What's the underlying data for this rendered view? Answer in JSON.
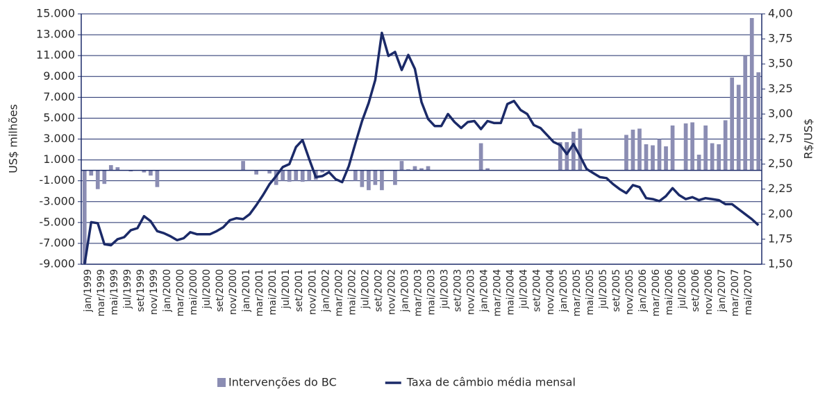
{
  "chart_data": {
    "type": "combo",
    "ylabel": "US$ milhões",
    "y2label": "R$/US$",
    "categories": [
      "jan/1999",
      null,
      "mar/1999",
      null,
      "mai/1999",
      null,
      "jul/1999",
      null,
      "set/1999",
      null,
      "nov/1999",
      null,
      "jan/2000",
      null,
      "mar/2000",
      null,
      "mai/2000",
      null,
      "jul/2000",
      null,
      "set/2000",
      null,
      "nov/2000",
      null,
      "jan/2001",
      null,
      "mar/2001",
      null,
      "mai/2001",
      null,
      "jul/2001",
      null,
      "set/2001",
      null,
      "nov/2001",
      null,
      "jan/2002",
      null,
      "mar/2002",
      null,
      "mai/2002",
      null,
      "jul/2002",
      null,
      "set/2002",
      null,
      "nov/2002",
      null,
      "jan/2003",
      null,
      "mar/2003",
      null,
      "mai/2003",
      null,
      "jul/2003",
      null,
      "set/2003",
      null,
      "nov/2003",
      null,
      "jan/2004",
      null,
      "mar/2004",
      null,
      "mai/2004",
      null,
      "jul/2004",
      null,
      "set/2004",
      null,
      "nov/2004",
      null,
      "jan/2005",
      null,
      "mar/2005",
      null,
      "mai/2005",
      null,
      "jul/2005",
      null,
      "set/2005",
      null,
      "nov/2005",
      null,
      "jan/2006",
      null,
      "mar/2006",
      null,
      "mai/2006",
      null,
      "jul/2006",
      null,
      "set/2006",
      null,
      "nov/2006",
      null,
      "jan/2007",
      null,
      "mar/2007",
      null,
      "mai/2007",
      null,
      null
    ],
    "series": [
      {
        "name": "Intervenções do BC",
        "type": "bar",
        "color": "#8b8db3",
        "values": [
          -9000,
          -500,
          -1800,
          -1300,
          500,
          300,
          0,
          -100,
          0,
          -200,
          -500,
          -1600,
          0,
          0,
          0,
          0,
          0,
          0,
          0,
          0,
          0,
          0,
          0,
          0,
          900,
          0,
          -400,
          0,
          -300,
          -1400,
          -1000,
          -1100,
          -1000,
          -1100,
          -1000,
          -900,
          -200,
          0,
          0,
          0,
          0,
          -1000,
          -1600,
          -1900,
          -1400,
          -1900,
          0,
          -1400,
          900,
          100,
          400,
          200,
          400,
          0,
          0,
          0,
          0,
          0,
          0,
          0,
          2600,
          200,
          0,
          0,
          0,
          0,
          0,
          0,
          0,
          0,
          0,
          0,
          2700,
          2700,
          3700,
          4000,
          0,
          0,
          0,
          0,
          0,
          0,
          3400,
          3900,
          4000,
          2500,
          2400,
          3000,
          2300,
          4300,
          0,
          4500,
          4600,
          1500,
          4300,
          2600,
          2500,
          4800,
          8900,
          8200,
          11000,
          14600,
          9400
        ]
      },
      {
        "name": "Taxa de câmbio média mensal",
        "type": "line",
        "axis": "y2",
        "color": "#1b2a68",
        "values": [
          1.5,
          1.92,
          1.91,
          1.7,
          1.69,
          1.75,
          1.77,
          1.84,
          1.86,
          1.98,
          1.93,
          1.83,
          1.81,
          1.78,
          1.74,
          1.76,
          1.82,
          1.8,
          1.8,
          1.8,
          1.83,
          1.87,
          1.94,
          1.96,
          1.95,
          2.0,
          2.09,
          2.19,
          2.3,
          2.38,
          2.47,
          2.5,
          2.67,
          2.74,
          2.55,
          2.37,
          2.38,
          2.42,
          2.35,
          2.32,
          2.48,
          2.71,
          2.93,
          3.11,
          3.34,
          3.81,
          3.58,
          3.62,
          3.44,
          3.59,
          3.45,
          3.12,
          2.95,
          2.88,
          2.88,
          3.0,
          2.92,
          2.86,
          2.92,
          2.93,
          2.85,
          2.93,
          2.91,
          2.91,
          3.1,
          3.13,
          3.04,
          3.0,
          2.89,
          2.86,
          2.79,
          2.72,
          2.69,
          2.6,
          2.7,
          2.58,
          2.45,
          2.41,
          2.37,
          2.36,
          2.3,
          2.25,
          2.21,
          2.29,
          2.27,
          2.16,
          2.15,
          2.13,
          2.18,
          2.26,
          2.19,
          2.15,
          2.17,
          2.14,
          2.16,
          2.15,
          2.14,
          2.1,
          2.1,
          2.05,
          2.0,
          1.95,
          1.89
        ]
      }
    ],
    "ylim": [
      -9000,
      15000
    ],
    "yticks": [
      {
        "value": -9000,
        "label": "-9.000"
      },
      {
        "value": -7000,
        "label": "-7.000"
      },
      {
        "value": -5000,
        "label": "-5.000"
      },
      {
        "value": -3000,
        "label": "-3.000"
      },
      {
        "value": -1000,
        "label": "-1.000"
      },
      {
        "value": 1000,
        "label": "1.000"
      },
      {
        "value": 3000,
        "label": "3.000"
      },
      {
        "value": 5000,
        "label": "5.000"
      },
      {
        "value": 7000,
        "label": "7.000"
      },
      {
        "value": 9000,
        "label": "9.000"
      },
      {
        "value": 11000,
        "label": "11.000"
      },
      {
        "value": 13000,
        "label": "13.000"
      },
      {
        "value": 15000,
        "label": "15.000"
      }
    ],
    "y2lim": [
      1.5,
      4.0
    ],
    "y2ticks": [
      {
        "value": 1.5,
        "label": "1,50"
      },
      {
        "value": 1.75,
        "label": "1,75"
      },
      {
        "value": 2.0,
        "label": "2,00"
      },
      {
        "value": 2.25,
        "label": "2,25"
      },
      {
        "value": 2.5,
        "label": "2,50"
      },
      {
        "value": 2.75,
        "label": "2,75"
      },
      {
        "value": 3.0,
        "label": "3,00"
      },
      {
        "value": 3.25,
        "label": "3,25"
      },
      {
        "value": 3.5,
        "label": "3,50"
      },
      {
        "value": 3.75,
        "label": "3,75"
      },
      {
        "value": 4.0,
        "label": "4,00"
      }
    ],
    "grid": true,
    "legend": "bottom"
  }
}
